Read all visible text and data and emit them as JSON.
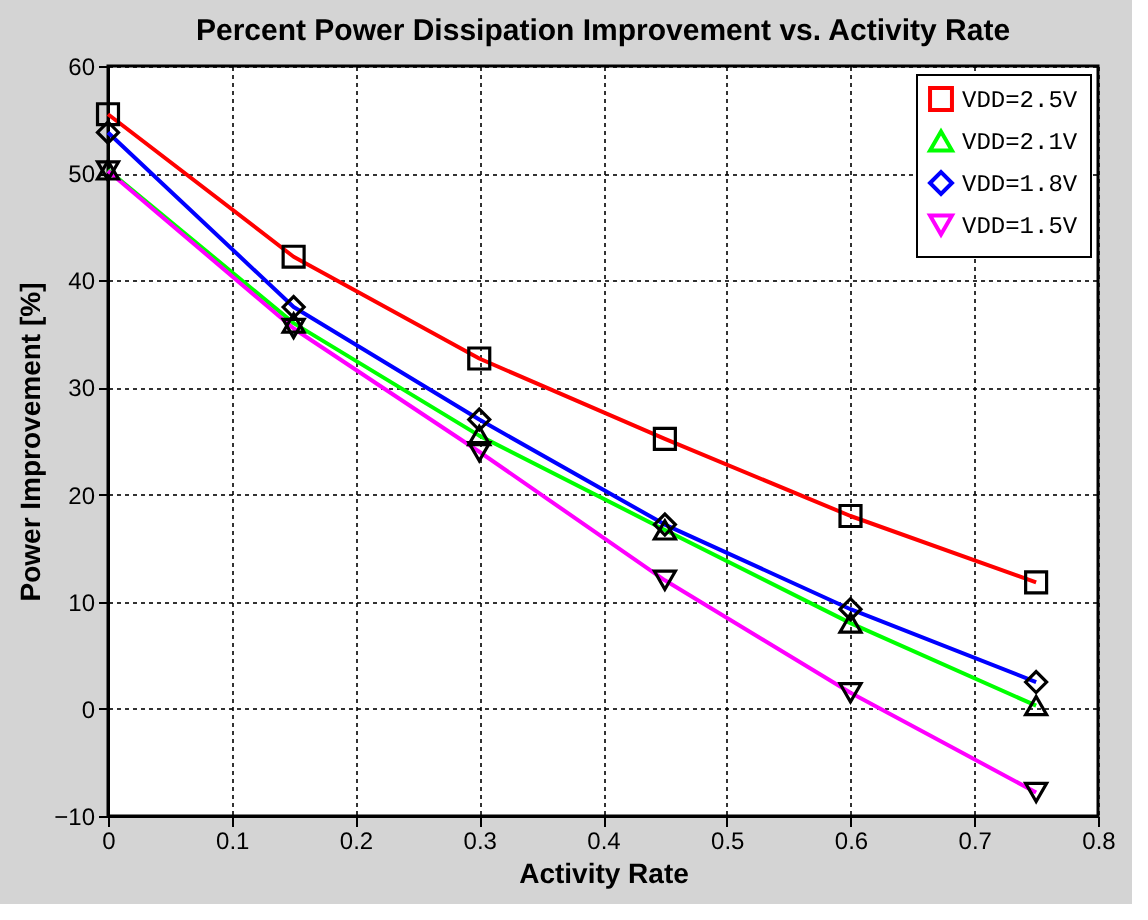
{
  "chart_data": {
    "type": "line",
    "title": "Percent Power Dissipation Improvement vs. Activity Rate",
    "xlabel": "Activity Rate",
    "ylabel": "Power Improvement [%]",
    "x": [
      0,
      0.15,
      0.3,
      0.45,
      0.6,
      0.75
    ],
    "series": [
      {
        "name": "VDD=2.5V",
        "color": "#ff0000",
        "marker": "square",
        "values": [
          55.5,
          42.2,
          32.7,
          25.2,
          18,
          11.8
        ]
      },
      {
        "name": "VDD=2.1V",
        "color": "#00ff00",
        "marker": "triangle",
        "values": [
          50.3,
          36,
          25.5,
          16.7,
          8,
          0.3
        ]
      },
      {
        "name": "VDD=1.8V",
        "color": "#0000ff",
        "marker": "diamond",
        "values": [
          53.8,
          37.5,
          27,
          17.2,
          9.3,
          2.5
        ]
      },
      {
        "name": "VDD=1.5V",
        "color": "#ff00ff",
        "marker": "triangle-down",
        "values": [
          50.2,
          35.5,
          24,
          12,
          1.5,
          -7.8
        ]
      }
    ],
    "xlim": [
      0,
      0.8
    ],
    "xticks": [
      0,
      0.1,
      0.2,
      0.3,
      0.4,
      0.5,
      0.6,
      0.7,
      0.8
    ],
    "ylim": [
      -10,
      60
    ],
    "yticks": [
      -10,
      0,
      10,
      20,
      30,
      40,
      50,
      60
    ],
    "grid": true,
    "legend": "top right",
    "line_style": "solid"
  }
}
